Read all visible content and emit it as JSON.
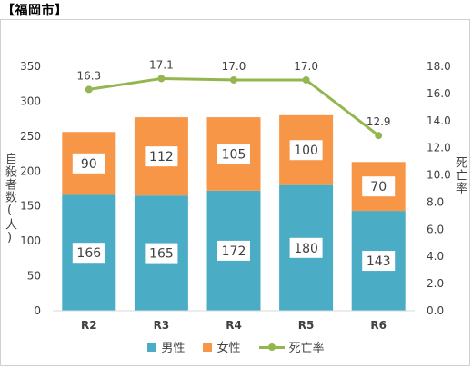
{
  "title": "【福岡市】",
  "colors": {
    "male": "#4bacc6",
    "female": "#f79646",
    "rate": "#93b651"
  },
  "chart_data": {
    "type": "bar",
    "stacked": true,
    "categories": [
      "R2",
      "R3",
      "R4",
      "R5",
      "R6"
    ],
    "series": [
      {
        "name": "男性",
        "values": [
          166,
          165,
          172,
          180,
          143
        ]
      },
      {
        "name": "女性",
        "values": [
          90,
          112,
          105,
          100,
          70
        ]
      }
    ],
    "line_series": {
      "name": "死亡率",
      "values": [
        16.3,
        17.1,
        17.0,
        17.0,
        12.9
      ],
      "labels": [
        "16.3",
        "17.1",
        "17.0",
        "17.0",
        "12.9"
      ]
    },
    "ylabel": "自殺者数(人)",
    "y2label": "死亡率",
    "ylim": [
      0,
      350
    ],
    "y2lim": [
      0,
      18
    ],
    "yticks": [
      "0",
      "50",
      "100",
      "150",
      "200",
      "250",
      "300",
      "350"
    ],
    "y2ticks": [
      "0.0",
      "2.0",
      "4.0",
      "6.0",
      "8.0",
      "10.0",
      "12.0",
      "14.0",
      "16.0",
      "18.0"
    ],
    "legend_position": "bottom",
    "grid": false
  }
}
